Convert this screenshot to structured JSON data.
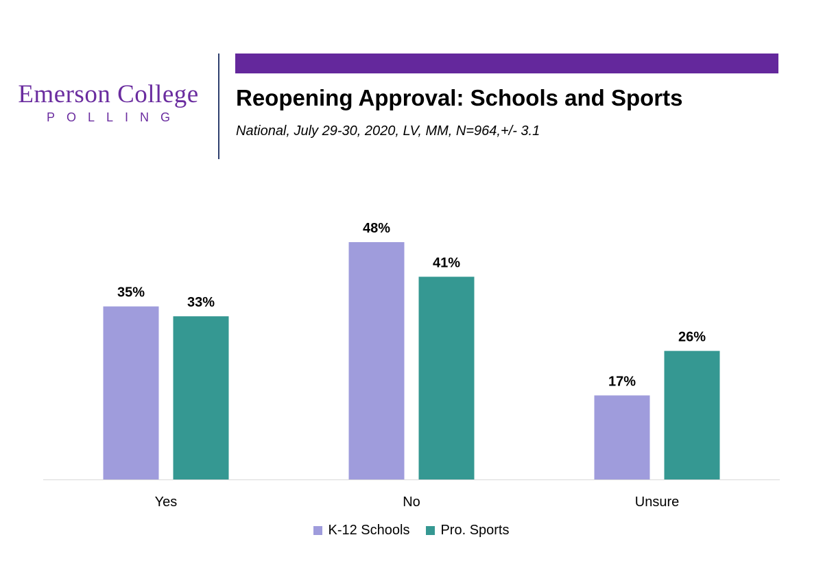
{
  "logo": {
    "main": "Emerson College",
    "sub": "POLLING"
  },
  "header": {
    "title": "Reopening Approval: Schools and Sports",
    "subtitle": "National, July 29-30, 2020, LV, MM,  N=964,+/-  3.1"
  },
  "colors": {
    "banner": "#64289c",
    "logo": "#6a2c9f",
    "k12": "#9f9cdc",
    "sports": "#359892",
    "axis": "#d9d9d9"
  },
  "chart_data": {
    "type": "bar",
    "categories": [
      "Yes",
      "No",
      "Unsure"
    ],
    "series": [
      {
        "name": "K-12 Schools",
        "values": [
          35,
          48,
          17
        ],
        "labels": [
          "35%",
          "48%",
          "17%"
        ],
        "color": "#9f9cdc"
      },
      {
        "name": "Pro. Sports",
        "values": [
          33,
          41,
          26
        ],
        "labels": [
          "33%",
          "41%",
          "26%"
        ],
        "color": "#359892"
      }
    ],
    "title": "Reopening Approval: Schools and Sports",
    "xlabel": "",
    "ylabel": "",
    "ylim": [
      0,
      48
    ],
    "grid": false,
    "legend": "bottom"
  }
}
